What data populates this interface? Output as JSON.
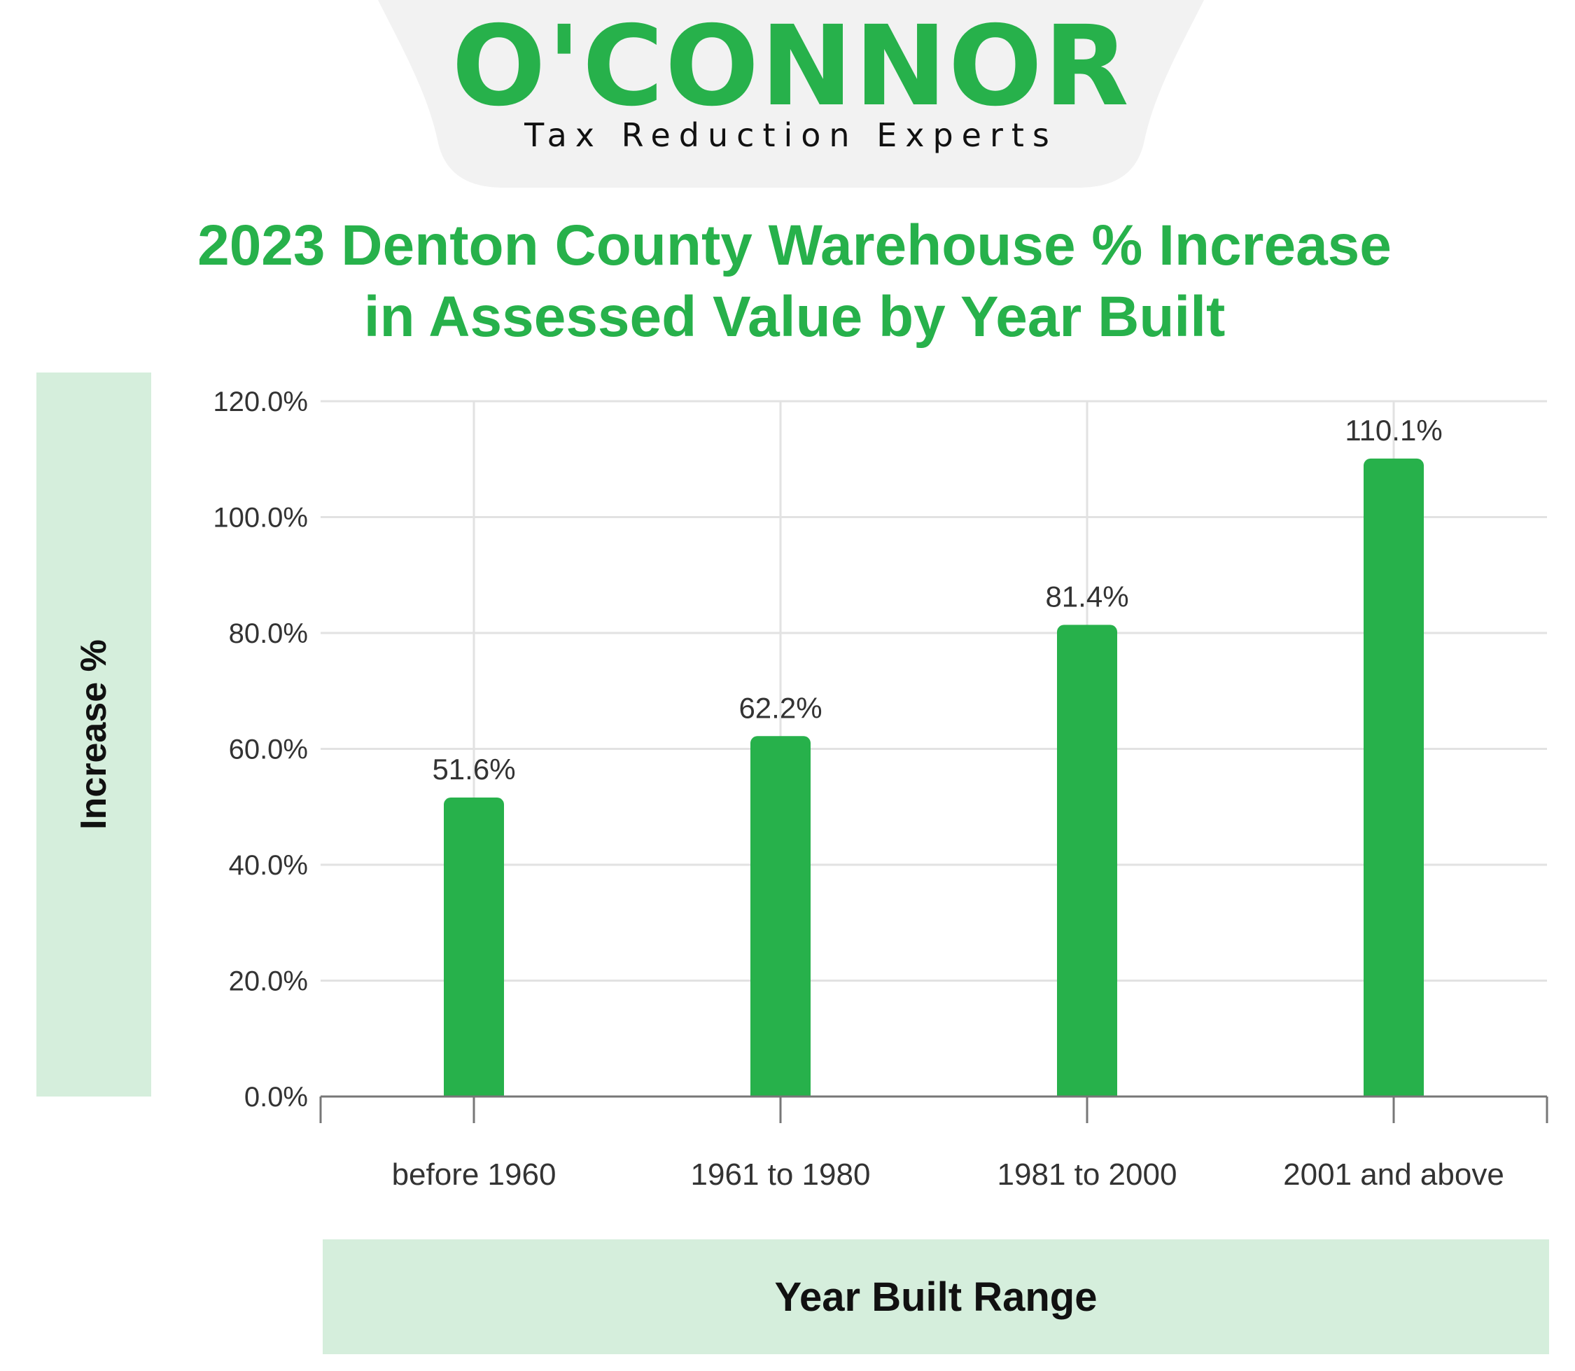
{
  "brand": {
    "name": "O'CONNOR",
    "tagline": "Tax Reduction Experts",
    "accent_color": "#27b14b",
    "header_bg_color": "#f2f2f2",
    "panel_color": "#d5eedc"
  },
  "chart_data": {
    "type": "bar",
    "title_line1": "2023 Denton County Warehouse % Increase",
    "title_line2": "in Assessed Value by Year Built",
    "xlabel": "Year Built Range",
    "ylabel": "Increase %",
    "categories": [
      "before 1960",
      "1961 to 1980",
      "1981 to 2000",
      "2001 and above"
    ],
    "values": [
      51.6,
      62.2,
      81.4,
      110.1
    ],
    "value_labels": [
      "51.6%",
      "62.2%",
      "81.4%",
      "110.1%"
    ],
    "ylim": [
      0,
      120
    ],
    "yticks": [
      0,
      20,
      40,
      60,
      80,
      100,
      120
    ],
    "ytick_labels": [
      "0.0%",
      "20.0%",
      "40.0%",
      "60.0%",
      "80.0%",
      "100.0%",
      "120.0%"
    ],
    "grid": true,
    "bar_color": "#27b14b"
  }
}
